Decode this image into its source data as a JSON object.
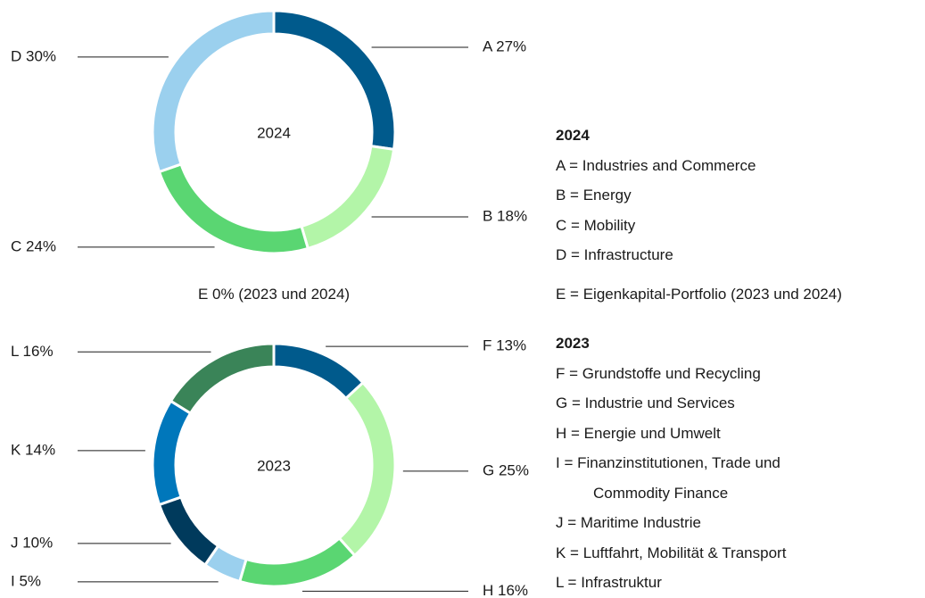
{
  "chart_data": [
    {
      "type": "donut",
      "center_label": "2024",
      "values": [
        27,
        18,
        24,
        30
      ],
      "value_labels": [
        "A 27%",
        "B 18%",
        "C 24%",
        "D 30%"
      ],
      "colors": [
        "#005a8c",
        "#b3f5a8",
        "#5ad672",
        "#9bd0ee"
      ],
      "legend_title": "2024",
      "legend": [
        "A = Industries and Commerce",
        "B = Energy",
        "C = Mobility",
        "D = Infrastructure"
      ]
    },
    {
      "type": "donut",
      "center_label": "2023",
      "values": [
        13,
        25,
        16,
        5,
        10,
        14,
        16
      ],
      "value_labels": [
        "F 13%",
        "G 25%",
        "H 16%",
        "I 5%",
        "J 10%",
        "K 14%",
        "L 16%"
      ],
      "colors": [
        "#005a8c",
        "#b3f5a8",
        "#5ad672",
        "#9bd0ee",
        "#003a5c",
        "#0077bb",
        "#3a8458"
      ],
      "legend_title": "2023",
      "legend": [
        "F = Grundstoffe und Recycling",
        "G = Industrie und Services",
        "H = Energie und Umwelt",
        "I = Finanzinstitutionen, Trade und\nCommodity Finance",
        "J = Maritime Industrie",
        "K = Luftfahrt, Mobilität & Transport",
        "L = Infrastruktur"
      ]
    }
  ],
  "annotations": {
    "shared_label": "E 0% (2023 und 2024)",
    "shared_legend": "E = Eigenkapital-Portfolio (2023 und 2024)"
  }
}
